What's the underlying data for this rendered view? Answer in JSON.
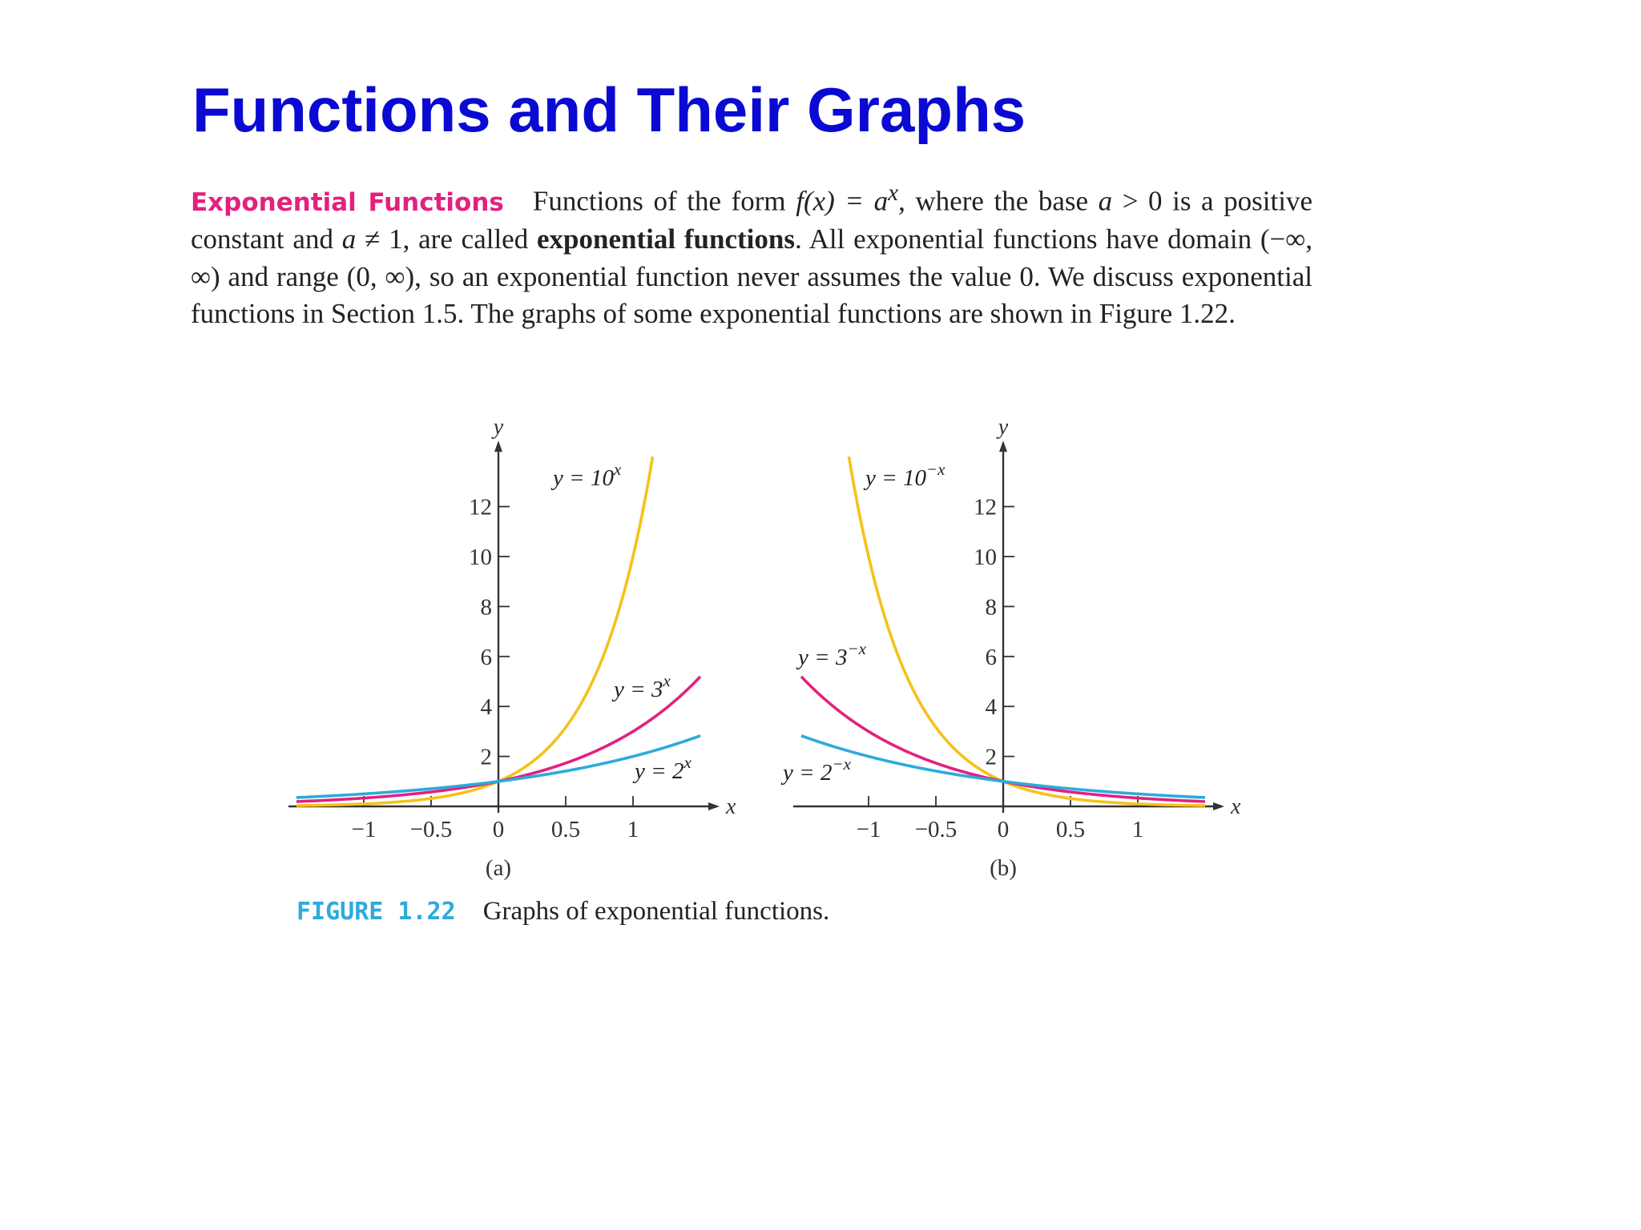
{
  "slide": {
    "title": "Functions and Their Graphs"
  },
  "text": {
    "heading": "Exponential Functions",
    "s1": "Functions of the form ",
    "f_of_x": "f(x) = a",
    "sup_x": "x",
    "s2": ", where the base ",
    "a1": "a",
    "s3": " > 0 is a positive constant and ",
    "a2": "a",
    "s4": " ≠ 1, are called ",
    "bold_term": "exponential functions",
    "s5": ". All exponential functions have domain (−∞, ∞) and range (0, ∞), so an exponential function never assumes the value 0. We discuss exponential functions in Section 1.5. The graphs of some exponential functions are shown in Figure 1.22."
  },
  "figure": {
    "label": "FIGURE 1.22",
    "caption": "Graphs of exponential functions."
  },
  "colors": {
    "title": "#0a0ad2",
    "heading": "#e2217f",
    "figure_label": "#2eaadc",
    "yellow": "#f5c21a",
    "magenta": "#e2217f",
    "cyan": "#2eaadc"
  },
  "chart_data": [
    {
      "type": "line",
      "panel_label": "(a)",
      "xlabel": "x",
      "ylabel": "y",
      "xticks": [
        -1,
        -0.5,
        0,
        0.5,
        1
      ],
      "xtick_labels": [
        "−1",
        "−0.5",
        "0",
        "0.5",
        "1"
      ],
      "yticks": [
        2,
        4,
        6,
        8,
        10,
        12
      ],
      "ytick_labels": [
        "2",
        "4",
        "6",
        "8",
        "10",
        "12"
      ],
      "xlim": [
        -1.5,
        1.5
      ],
      "ylim": [
        0,
        14
      ],
      "grid": false,
      "series": [
        {
          "name": "y = 10",
          "exp": "x",
          "base": 10,
          "sign": 1,
          "x_range": [
            -1.5,
            1.146
          ],
          "color": "#f5c21a"
        },
        {
          "name": "y = 3",
          "exp": "x",
          "base": 3,
          "sign": 1,
          "x_range": [
            -1.5,
            1.5
          ],
          "color": "#e2217f"
        },
        {
          "name": "y = 2",
          "exp": "x",
          "base": 2,
          "sign": 1,
          "x_range": [
            -1.5,
            1.5
          ],
          "color": "#2eaadc"
        }
      ]
    },
    {
      "type": "line",
      "panel_label": "(b)",
      "xlabel": "x",
      "ylabel": "y",
      "xticks": [
        -1,
        -0.5,
        0,
        0.5,
        1
      ],
      "xtick_labels": [
        "−1",
        "−0.5",
        "0",
        "0.5",
        "1"
      ],
      "yticks": [
        2,
        4,
        6,
        8,
        10,
        12
      ],
      "ytick_labels": [
        "2",
        "4",
        "6",
        "8",
        "10",
        "12"
      ],
      "xlim": [
        -1.5,
        1.5
      ],
      "ylim": [
        0,
        14
      ],
      "grid": false,
      "series": [
        {
          "name": "y = 10",
          "exp": "−x",
          "base": 10,
          "sign": -1,
          "x_range": [
            -1.146,
            1.5
          ],
          "color": "#f5c21a"
        },
        {
          "name": "y = 3",
          "exp": "−x",
          "base": 3,
          "sign": -1,
          "x_range": [
            -1.5,
            1.5
          ],
          "color": "#e2217f"
        },
        {
          "name": "y = 2",
          "exp": "−x",
          "base": 2,
          "sign": -1,
          "x_range": [
            -1.5,
            1.5
          ],
          "color": "#2eaadc"
        }
      ]
    }
  ]
}
